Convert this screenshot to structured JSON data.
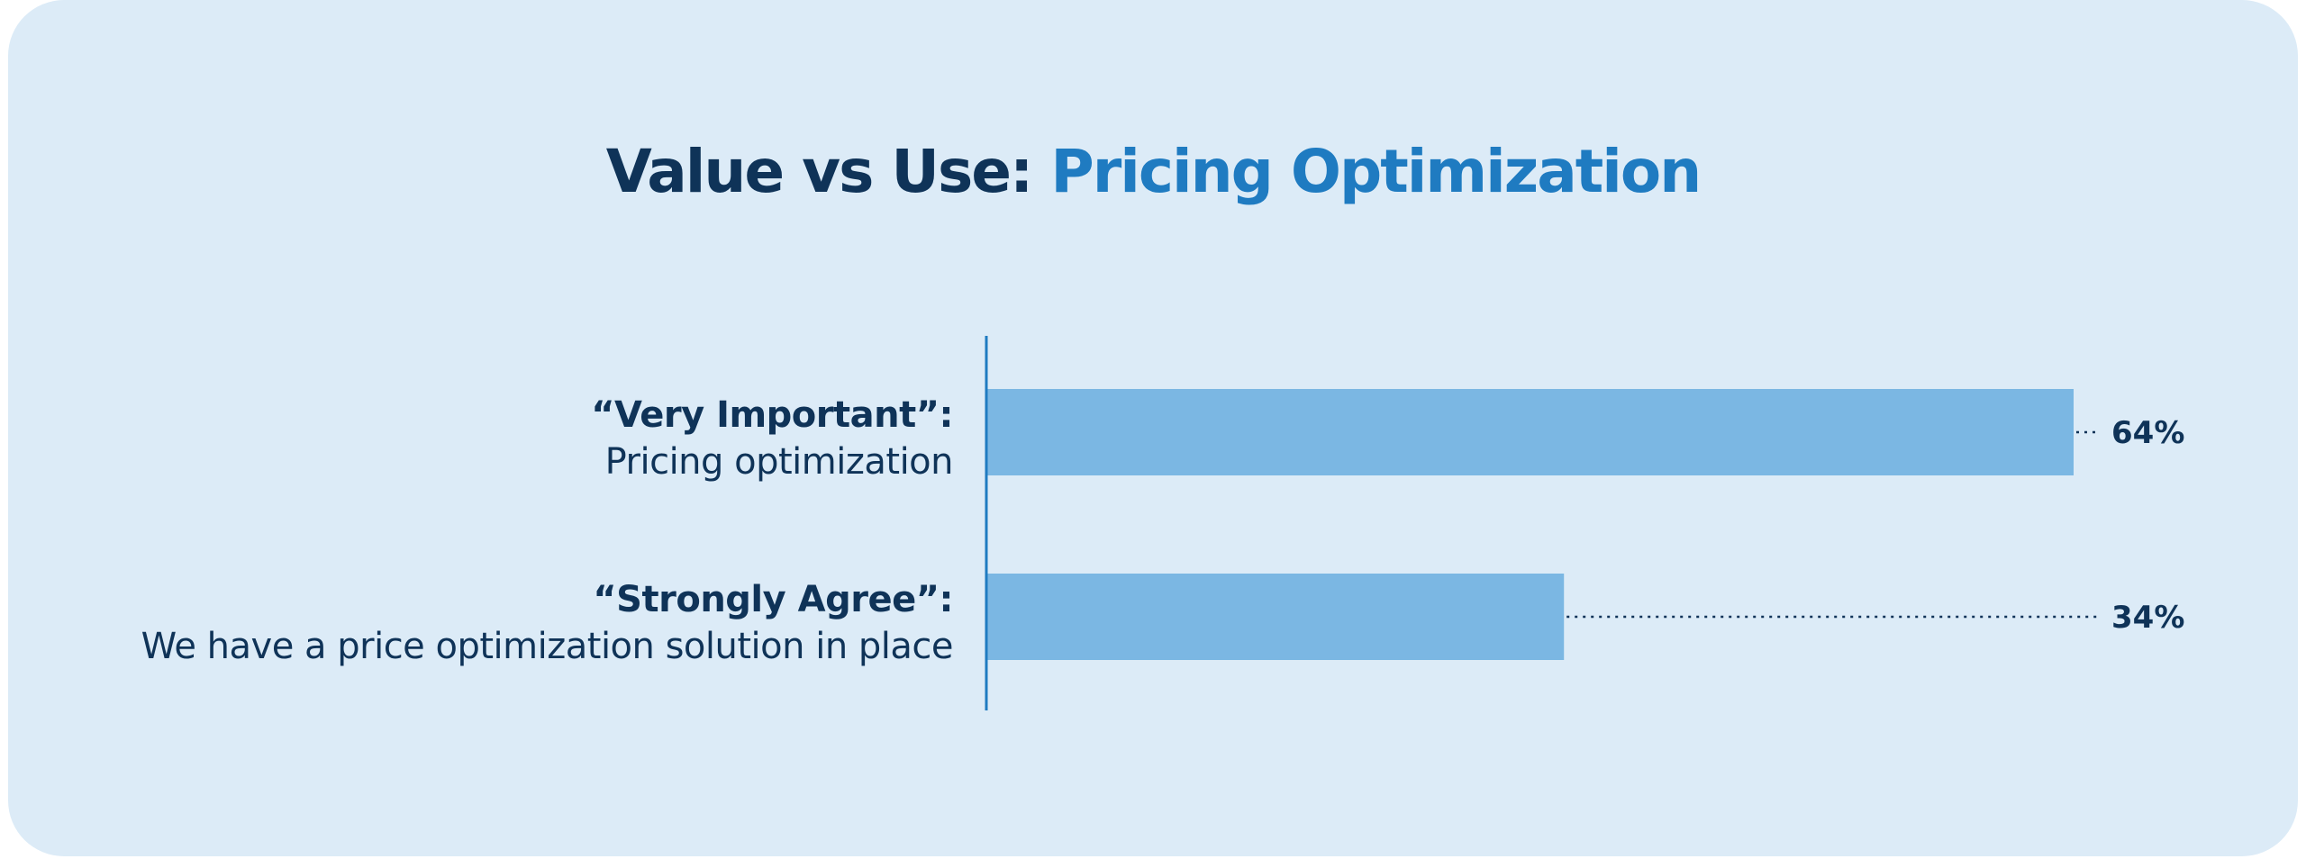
{
  "title": {
    "part1": "Value vs Use: ",
    "part2": "Pricing Optimization"
  },
  "colors": {
    "card_bg": "#dcebf7",
    "title_dark": "#0f3358",
    "title_accent": "#1f7bc1",
    "bar": "#7bb7e3",
    "axis": "#1f7bc1",
    "text": "#0f3358"
  },
  "chart_data": {
    "type": "bar",
    "orientation": "horizontal",
    "categories": [
      {
        "bold": "“Very Important”:",
        "regular": "Pricing optimization"
      },
      {
        "bold": "“Strongly Agree”:",
        "regular": "We have a price optimization solution in place"
      }
    ],
    "values": [
      64,
      34
    ],
    "value_labels": [
      "64%",
      "34%"
    ],
    "xlim": [
      0,
      70
    ],
    "grid": false
  }
}
